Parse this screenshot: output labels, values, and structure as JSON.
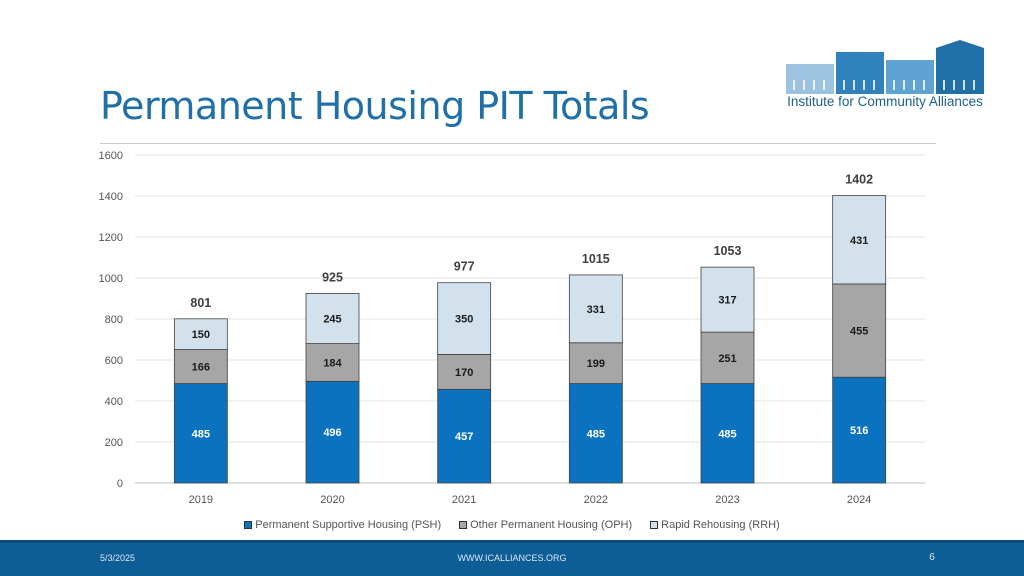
{
  "slide": {
    "title": "Permanent Housing PIT Totals",
    "logo_text": "Institute for Community Alliances"
  },
  "footer": {
    "date": "5/3/2025",
    "url": "WWW.ICALLIANCES.ORG",
    "page": "6"
  },
  "colors": {
    "title": "#1f6fa8",
    "psh": "#0a72bf",
    "oph": "#a6a6a6",
    "rrh": "#d3e1ed",
    "footer": "#0d5d96"
  },
  "chart_data": {
    "type": "bar",
    "stacked": true,
    "title": "",
    "xlabel": "",
    "ylabel": "",
    "ylim": [
      0,
      1600
    ],
    "yticks": [
      0,
      200,
      400,
      600,
      800,
      1000,
      1200,
      1400,
      1600
    ],
    "grid": true,
    "legend_position": "bottom",
    "categories": [
      "2019",
      "2020",
      "2021",
      "2022",
      "2023",
      "2024"
    ],
    "series": [
      {
        "name": "Permanent Supportive Housing (PSH)",
        "values": [
          485,
          496,
          457,
          485,
          485,
          516
        ],
        "color": "#0a72bf"
      },
      {
        "name": "Other Permanent Housing (OPH)",
        "values": [
          166,
          184,
          170,
          199,
          251,
          455
        ],
        "color": "#a6a6a6"
      },
      {
        "name": "Rapid Rehousing (RRH)",
        "values": [
          150,
          245,
          350,
          331,
          317,
          431
        ],
        "color": "#d3e1ed"
      }
    ],
    "totals": [
      801,
      925,
      977,
      1015,
      1053,
      1402
    ]
  }
}
